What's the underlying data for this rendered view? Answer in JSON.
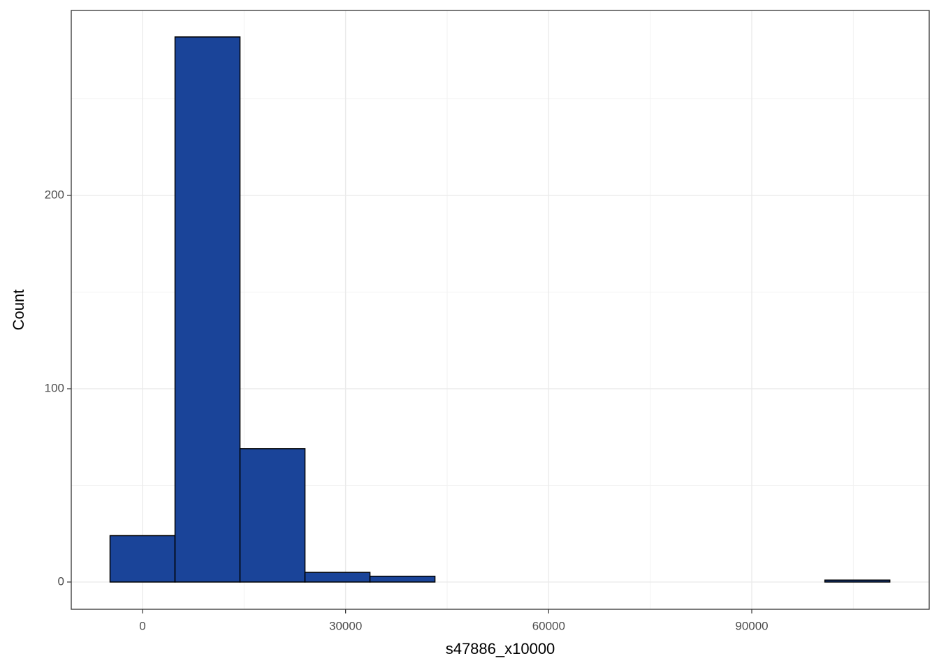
{
  "chart_data": {
    "type": "histogram",
    "x_label": "s47886_x10000",
    "y_label": "Count",
    "bins": [
      -4800,
      4800,
      14400,
      24000,
      33600,
      43200,
      52800,
      62400,
      72000,
      81600,
      91200,
      100800,
      110400
    ],
    "values": [
      24,
      282,
      69,
      5,
      3,
      0,
      0,
      0,
      0,
      0,
      0,
      1
    ],
    "color": "#1a4499",
    "edge_color": "#000000",
    "xlim": [
      -10527,
      116215
    ],
    "ylim": [
      -14.1,
      295.7
    ],
    "xticks": [
      0,
      30000,
      60000,
      90000
    ],
    "yticks": [
      0,
      100,
      200
    ],
    "x_minor_grid": [
      15000,
      45000,
      75000,
      105000
    ],
    "y_minor_grid": [
      50,
      150,
      250
    ],
    "grid": true
  }
}
